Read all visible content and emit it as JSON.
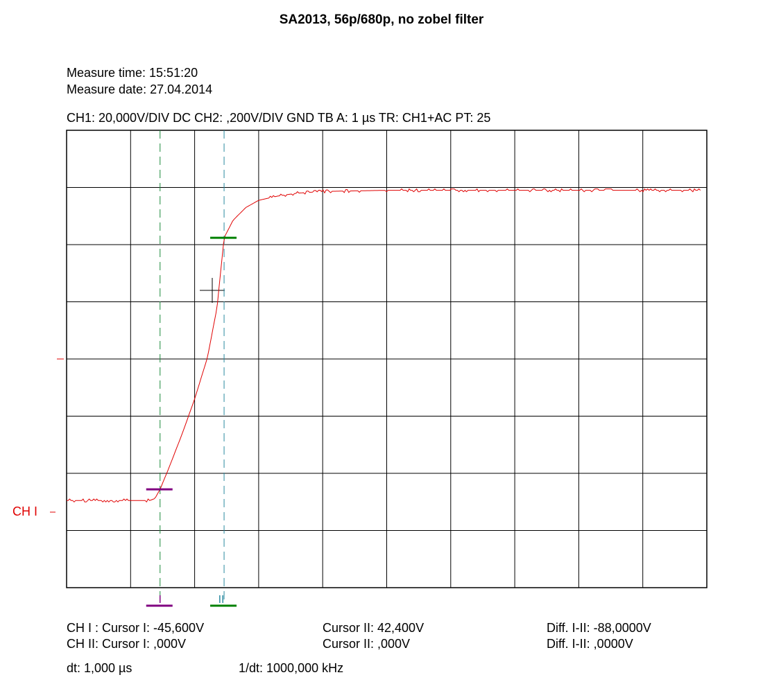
{
  "title": "SA2013, 56p/680p, no zobel filter",
  "measure_time": "Measure time: 15:51:20",
  "measure_date": "Measure date: 27.04.2014",
  "settings_line": "CH1: 20,000V/DIV DC  CH2: ,200V/DIV GND   TB A: 1 µs  TR: CH1+AC  PT: 25",
  "channel_marker": "CH I",
  "cursor_marks": {
    "one": "I",
    "two": "II"
  },
  "footer": {
    "ch1_cursor1": "CH I :  Cursor I: -45,600V",
    "ch1_cursor2": "Cursor II: 42,400V",
    "ch1_diff": "Diff. I-II: -88,0000V",
    "ch2_cursor1": "CH II:  Cursor I: ,000V",
    "ch2_cursor2": "Cursor II: ,000V",
    "ch2_diff": "Diff. I-II: ,0000V",
    "dt": "dt: 1,000 µs",
    "inv_dt": "1/dt: 1000,000 kHz"
  },
  "colors": {
    "trace": "#e00000",
    "cursor1": "#800080",
    "cursor2": "#008000",
    "cursor_line1": "#1a8a3a",
    "cursor_line2": "#2a8aa0",
    "grid": "#000000"
  },
  "chart_data": {
    "type": "line",
    "xlabel": "",
    "ylabel": "",
    "xunit_per_div": "1 µs",
    "yunit_per_div": "20,000 V",
    "xlim_div": [
      0,
      10
    ],
    "ylim_div": [
      -4,
      4
    ],
    "grid": true,
    "cursor_I": {
      "time_div": 1.46,
      "level_v": -45.6
    },
    "cursor_II": {
      "time_div": 2.46,
      "level_v": 42.4
    },
    "series": [
      {
        "color": "#e00000",
        "x_div": [
          0,
          1.0,
          1.3,
          1.38,
          1.46,
          1.6,
          1.8,
          2.0,
          2.2,
          2.35,
          2.46,
          2.6,
          2.8,
          3.0,
          3.3,
          3.6,
          4.0,
          5.0,
          6.0,
          7.0,
          8.0,
          9.0,
          9.9
        ],
        "values": [
          -49.5,
          -49.5,
          -49.5,
          -48.8,
          -45.6,
          -38.0,
          -26.5,
          -14.0,
          0.5,
          18.0,
          42.4,
          48.5,
          53.0,
          55.5,
          57.0,
          58.0,
          58.6,
          59.0,
          59.0,
          59.0,
          59.0,
          59.0,
          59.0
        ]
      }
    ]
  }
}
